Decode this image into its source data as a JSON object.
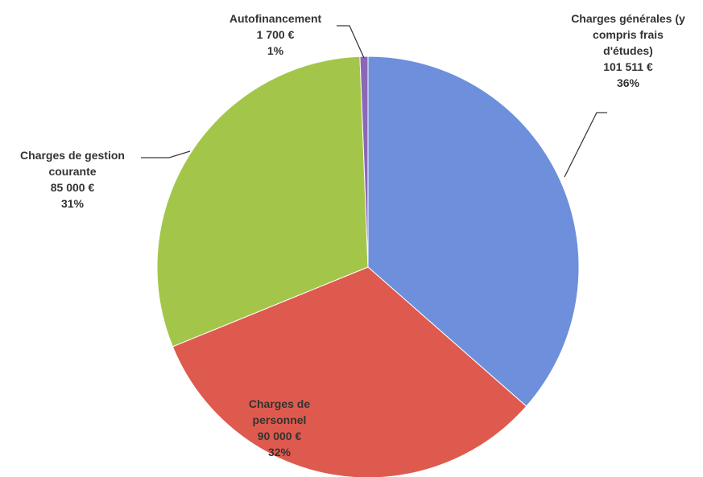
{
  "chart_data": {
    "type": "pie",
    "start_angle_deg": 0,
    "direction": "clockwise",
    "slices": [
      {
        "label_lines": [
          "Charges générales (y",
          "compris frais",
          "d'études)"
        ],
        "value": 101511,
        "value_text": "101 511 €",
        "percent_text": "36%",
        "color": "#6d8fdc"
      },
      {
        "label_lines": [
          "Charges de",
          "personnel"
        ],
        "value": 90000,
        "value_text": "90 000 €",
        "percent_text": "32%",
        "color": "#df5a4e"
      },
      {
        "label_lines": [
          "Charges de gestion",
          "courante"
        ],
        "value": 85000,
        "value_text": "85 000 €",
        "percent_text": "31%",
        "color": "#a3c64a"
      },
      {
        "label_lines": [
          "Autofinancement"
        ],
        "value": 1700,
        "value_text": "1 700 €",
        "percent_text": "1%",
        "color": "#8b68b4"
      }
    ]
  }
}
